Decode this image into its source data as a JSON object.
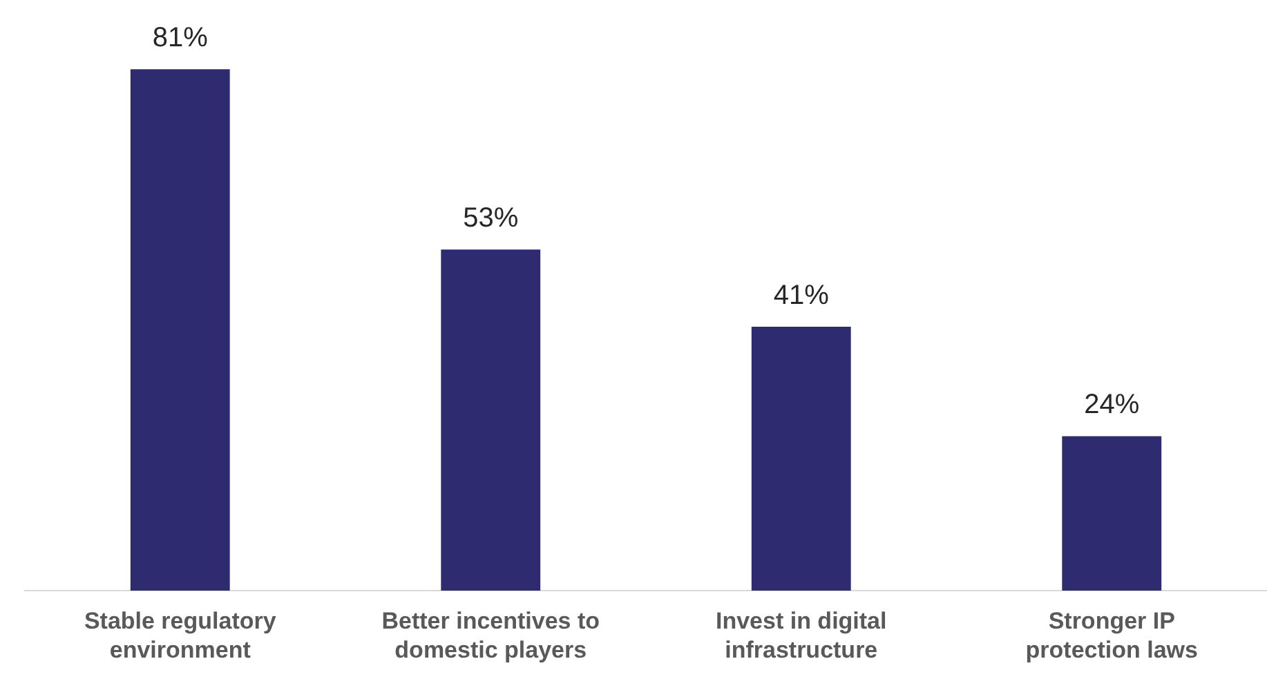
{
  "chart_data": {
    "type": "bar",
    "categories": [
      "Stable regulatory environment",
      "Better incentives to domestic players",
      "Invest in digital infrastructure",
      "Stronger IP protection laws"
    ],
    "values": [
      81,
      53,
      41,
      24
    ],
    "color": "#2e2b70",
    "value_labels": [
      "81%",
      "53%",
      "41%",
      "24%"
    ],
    "grid": false,
    "legend": false
  }
}
